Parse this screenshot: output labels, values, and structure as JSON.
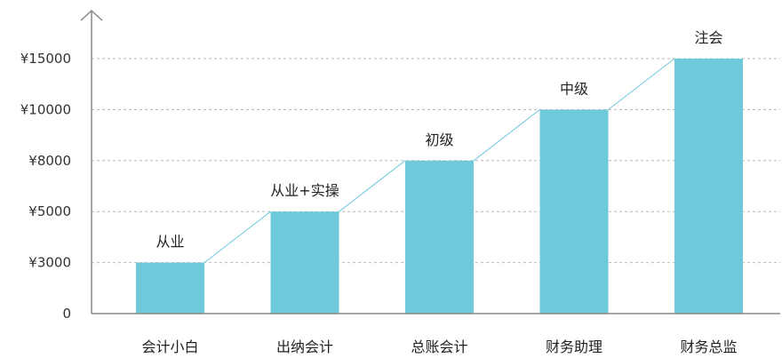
{
  "chart_data": {
    "type": "bar",
    "categories": [
      "会计小白",
      "出纳会计",
      "总账会计",
      "财务助理",
      "财务总监"
    ],
    "values": [
      3000,
      5000,
      8000,
      10000,
      15000
    ],
    "bar_labels": [
      "从业",
      "从业+实操",
      "初级",
      "中级",
      "注会"
    ],
    "y_ticks": [
      {
        "value": 0,
        "label": "0"
      },
      {
        "value": 3000,
        "label": "¥3000"
      },
      {
        "value": 5000,
        "label": "¥5000"
      },
      {
        "value": 8000,
        "label": "¥8000"
      },
      {
        "value": 10000,
        "label": "¥10000"
      },
      {
        "value": 15000,
        "label": "¥15000"
      }
    ],
    "ylim": [
      0,
      15000
    ],
    "y_scale": "categorical-ticks (evenly spaced)",
    "grid": true,
    "connector_line": true,
    "colors": {
      "bar": "#6ecadb",
      "connector": "#6ecadb",
      "grid": "#b8b8b8",
      "axis": "#888888"
    }
  }
}
